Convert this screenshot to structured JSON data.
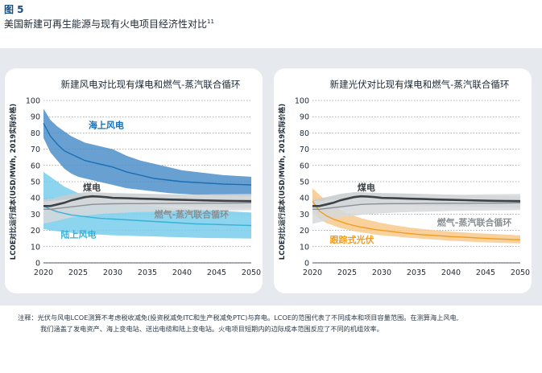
{
  "figure": {
    "label": "图 5",
    "title": "美国新建可再生能源与现有火电项目经济性对比",
    "title_sup": "11"
  },
  "note": {
    "line1": "注释：光伏与风电LCOE测算不考虑税收减免(投资税减免ITC和生产税减免PTC)与弃电。LCOE的范围代表了不同成本和项目容量范围。在测算海上风电,",
    "line2": "我们涵盖了发电资产、海上变电站、送出电缆和陆上变电站。火电项目短期内的边际成本范围反应了不同的机组效率。"
  },
  "chart_data": [
    {
      "type": "area",
      "title": "新建风电对比现有煤电和燃气-蒸汽联合循环",
      "xlabel": "",
      "ylabel": "LCOE对比运行成本(USD/MWh, 2019实际价格)",
      "xlim": [
        2020,
        2050
      ],
      "ylim": [
        0,
        100
      ],
      "xticks": [
        2020,
        2025,
        2030,
        2035,
        2040,
        2045,
        2050
      ],
      "yticks": [
        0,
        10,
        20,
        30,
        40,
        50,
        60,
        70,
        80,
        90,
        100
      ],
      "grid": true,
      "x": [
        2020,
        2021,
        2022,
        2023,
        2024,
        2025,
        2026,
        2027,
        2028,
        2029,
        2030,
        2032,
        2034,
        2036,
        2038,
        2040,
        2042,
        2044,
        2046,
        2048,
        2050
      ],
      "series": [
        {
          "name": "海上风电",
          "color": "#1a6fb3",
          "band_color": "#4f8fca",
          "label_at": [
            2026.5,
            83
          ],
          "mid": [
            86,
            78,
            73,
            69,
            67,
            65,
            63,
            62,
            61,
            60,
            59,
            56,
            54,
            52,
            51,
            50,
            49.5,
            49,
            48.5,
            48.3,
            48
          ],
          "upper": [
            95,
            88,
            84,
            81,
            78,
            76,
            74,
            73,
            72,
            71,
            70,
            66,
            63,
            61,
            59,
            57,
            56,
            55,
            54,
            53.5,
            53
          ],
          "lower": [
            77,
            68,
            63,
            58,
            55,
            53,
            52,
            51,
            50,
            49,
            48,
            46,
            45,
            44,
            43,
            42.5,
            42,
            41.5,
            41,
            41,
            40.5
          ]
        },
        {
          "name": "陆上风电",
          "color": "#3ab0d8",
          "band_color": "#79cdec",
          "label_at": [
            2022.5,
            15.5
          ],
          "mid": [
            35,
            33,
            31.5,
            30.5,
            29.5,
            29,
            28.5,
            28,
            27.5,
            27.2,
            27,
            26.5,
            26,
            25.5,
            25,
            24.5,
            24,
            23.8,
            23.5,
            23.2,
            23
          ],
          "upper": [
            56,
            53,
            50,
            47,
            45,
            43,
            41.5,
            40.5,
            39.5,
            38.5,
            38,
            37,
            36,
            35,
            34,
            33.5,
            33,
            32.5,
            32,
            31.5,
            31
          ],
          "lower": [
            21,
            20,
            19.5,
            19,
            18.5,
            18,
            18,
            17.5,
            17.5,
            17.2,
            17,
            16.8,
            16.5,
            16.3,
            16,
            15.8,
            15.5,
            15.3,
            15.2,
            15.1,
            15
          ]
        },
        {
          "name": "煤电",
          "color": "#3d4246",
          "band_color": "#c9ccce",
          "label_at": [
            2025.7,
            44.5
          ],
          "mid": [
            35,
            35,
            36,
            37,
            38.5,
            39.5,
            40.5,
            41,
            40.8,
            40.5,
            40,
            39.8,
            39.5,
            39.3,
            39,
            38.8,
            38.6,
            38.4,
            38.2,
            38.1,
            38
          ],
          "upper": [
            39,
            39.5,
            40.5,
            41.5,
            42.5,
            43,
            43.5,
            43.5,
            43.3,
            43.2,
            43,
            42.8,
            42.6,
            42.4,
            42.2,
            42,
            41.8,
            41.6,
            41.4,
            41.2,
            41
          ],
          "lower": [
            31,
            31,
            31.5,
            32.5,
            33.5,
            35,
            36,
            36.5,
            36.5,
            36.3,
            36,
            35.8,
            35.5,
            35.3,
            35,
            34.8,
            34.6,
            34.4,
            34.2,
            34.1,
            34
          ]
        },
        {
          "name": "燃气-蒸汽联合循环",
          "color": "#8a8f93",
          "band_color": "#d6d8da",
          "label_at": [
            2036,
            28
          ],
          "mid": [
            33,
            33,
            33.5,
            34,
            34.5,
            35,
            35.5,
            36,
            36.2,
            36.3,
            36.4,
            36.5,
            36.5,
            36.6,
            36.6,
            36.7,
            36.7,
            36.8,
            36.8,
            36.9,
            37
          ],
          "upper": [
            38,
            38,
            38.5,
            39,
            39.5,
            40,
            40.5,
            41,
            41,
            41,
            41,
            41.2,
            41.4,
            41.6,
            41.8,
            42,
            42,
            42.2,
            42.3,
            42.4,
            42.5
          ],
          "lower": [
            24,
            25,
            26,
            27,
            28,
            28.5,
            29,
            29.5,
            30,
            30.3,
            30.5,
            31,
            31.3,
            31.5,
            31.7,
            32,
            32.1,
            32.2,
            32.3,
            32.4,
            32.5
          ]
        }
      ]
    },
    {
      "type": "area",
      "title": "新建光伏对比现有煤电和燃气-蒸汽联合循环",
      "xlabel": "",
      "ylabel": "LCOE对比运行成本(USD/MWh, 2019实际价格)",
      "xlim": [
        2020,
        2050
      ],
      "ylim": [
        0,
        100
      ],
      "xticks": [
        2020,
        2025,
        2030,
        2035,
        2040,
        2045,
        2050
      ],
      "yticks": [
        0,
        10,
        20,
        30,
        40,
        50,
        60,
        70,
        80,
        90,
        100
      ],
      "grid": true,
      "x": [
        2020,
        2021,
        2022,
        2023,
        2024,
        2025,
        2026,
        2027,
        2028,
        2029,
        2030,
        2032,
        2034,
        2036,
        2038,
        2040,
        2042,
        2044,
        2046,
        2048,
        2050
      ],
      "series": [
        {
          "name": "跟踪式光伏",
          "color": "#f29c1f",
          "band_color": "#f7c98c",
          "label_at": [
            2022.5,
            12.5
          ],
          "mid": [
            38,
            32,
            29,
            27,
            25.5,
            24,
            23,
            22,
            21.3,
            20.5,
            20,
            19,
            18,
            17.3,
            16.8,
            16.2,
            15.8,
            15.3,
            14.9,
            14.5,
            14.2
          ],
          "upper": [
            46,
            42,
            38,
            35,
            32.5,
            30.5,
            29,
            27.5,
            26.5,
            25.5,
            24.5,
            23,
            21.8,
            20.8,
            20,
            19.3,
            18.7,
            18.2,
            17.8,
            17.4,
            17
          ],
          "lower": [
            31,
            27,
            24.5,
            23,
            21.5,
            20.5,
            19.5,
            18.8,
            18.2,
            17.5,
            17,
            16.2,
            15.5,
            14.8,
            14.2,
            13.6,
            13.2,
            12.8,
            12.5,
            12.2,
            12
          ]
        },
        {
          "name": "煤电",
          "color": "#3d4246",
          "band_color": "#c9ccce",
          "label_at": [
            2026.5,
            44.5
          ],
          "mid": [
            35,
            35,
            36,
            37,
            38.5,
            39.5,
            40.5,
            41,
            40.8,
            40.5,
            40,
            39.8,
            39.5,
            39.3,
            39,
            38.8,
            38.6,
            38.4,
            38.2,
            38.1,
            38
          ],
          "upper": [
            39,
            39.5,
            40.5,
            41.5,
            42.5,
            43,
            43.5,
            43.5,
            43.3,
            43.2,
            43,
            42.8,
            42.6,
            42.4,
            42.2,
            42,
            41.8,
            41.6,
            41.4,
            41.2,
            41
          ],
          "lower": [
            31,
            31,
            31.5,
            32.5,
            33.5,
            35,
            36,
            36.5,
            36.5,
            36.3,
            36,
            35.8,
            35.5,
            35.3,
            35,
            34.8,
            34.6,
            34.4,
            34.2,
            34.1,
            34
          ]
        },
        {
          "name": "燃气-蒸汽联合循环",
          "color": "#8a8f93",
          "band_color": "#d6d8da",
          "label_at": [
            2038,
            23
          ],
          "mid": [
            33,
            33,
            33.5,
            34,
            34.5,
            35,
            35.5,
            36,
            36.2,
            36.3,
            36.4,
            36.5,
            36.5,
            36.6,
            36.6,
            36.7,
            36.7,
            36.8,
            36.8,
            36.9,
            37
          ],
          "upper": [
            38,
            38,
            38.5,
            39,
            39.5,
            40,
            40.5,
            41,
            41,
            41,
            41,
            41.2,
            41.4,
            41.6,
            41.8,
            42,
            42,
            42.2,
            42.3,
            42.4,
            42.5
          ],
          "lower": [
            24,
            25,
            26,
            27,
            28,
            28.5,
            29,
            29.5,
            30,
            30.3,
            30.5,
            31,
            31.3,
            31.5,
            31.7,
            32,
            32.1,
            32.2,
            32.3,
            32.4,
            32.5
          ]
        }
      ]
    }
  ]
}
